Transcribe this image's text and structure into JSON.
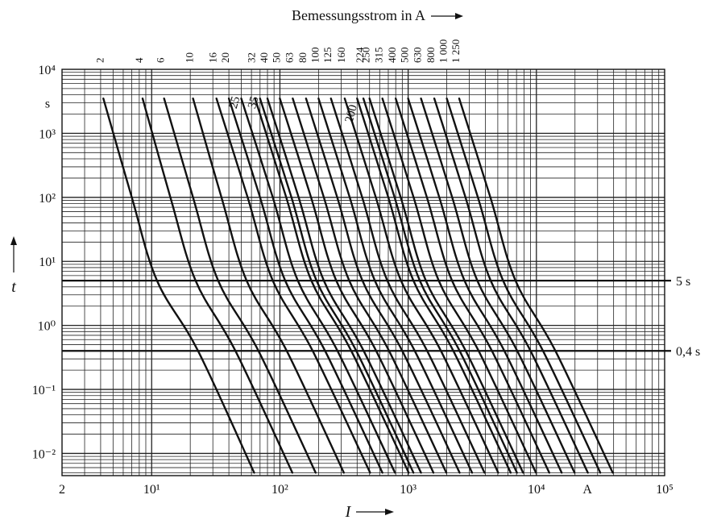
{
  "chart_data": {
    "type": "line",
    "title": "",
    "top_axis_title": "Bemessungsstrom in A",
    "xlabel": "I",
    "ylabel": "t",
    "x_unit": "A",
    "y_unit": "s",
    "x_scale": "log",
    "y_scale": "log",
    "xlim": [
      2,
      100000
    ],
    "ylim": [
      0.0045,
      10000
    ],
    "grid": true,
    "x_ticks": [
      "2",
      "10¹",
      "10²",
      "10³",
      "10⁴",
      "10⁵"
    ],
    "y_ticks": [
      "10⁴",
      "10³",
      "10²",
      "10¹",
      "10⁰",
      "10⁻¹",
      "10⁻²"
    ],
    "reference_lines": [
      {
        "label": "5 s",
        "y": 5
      },
      {
        "label": "0,4 s",
        "y": 0.4
      }
    ],
    "curve_hint_labels": [
      "25",
      "35",
      "200"
    ],
    "series": [
      {
        "name": "2",
        "rated_current": 2,
        "x": [
          4.2,
          7.0,
          11.0,
          23.0,
          63.0
        ],
        "y": [
          3500,
          100,
          5,
          0.4,
          0.005
        ]
      },
      {
        "name": "4",
        "rated_current": 4,
        "x": [
          8.5,
          14.0,
          22.0,
          45.0,
          125.0
        ],
        "y": [
          3500,
          100,
          5,
          0.4,
          0.005
        ]
      },
      {
        "name": "6",
        "rated_current": 6,
        "x": [
          12.5,
          21.0,
          33.0,
          68.0,
          190.0
        ],
        "y": [
          3500,
          100,
          5,
          0.4,
          0.005
        ]
      },
      {
        "name": "10",
        "rated_current": 10,
        "x": [
          21.0,
          35.0,
          55.0,
          113.0,
          315.0
        ],
        "y": [
          3500,
          100,
          5,
          0.4,
          0.005
        ]
      },
      {
        "name": "16",
        "rated_current": 16,
        "x": [
          32.0,
          56.0,
          88.0,
          180.0,
          505.0
        ],
        "y": [
          3500,
          100,
          5,
          0.4,
          0.005
        ]
      },
      {
        "name": "20",
        "rated_current": 20,
        "x": [
          40.0,
          70.0,
          110.0,
          225.0,
          630.0
        ],
        "y": [
          3500,
          100,
          5,
          0.4,
          0.005
        ]
      },
      {
        "name": "25",
        "rated_current": 25,
        "x": [
          50.0,
          88.0,
          138.0,
          281.0,
          790.0
        ],
        "y": [
          3500,
          100,
          5,
          0.4,
          0.005
        ]
      },
      {
        "name": "32",
        "rated_current": 32,
        "x": [
          64.0,
          112.0,
          176.0,
          360.0,
          1010.0
        ],
        "y": [
          3500,
          100,
          5,
          0.4,
          0.005
        ]
      },
      {
        "name": "35",
        "rated_current": 35,
        "x": [
          70.0,
          123.0,
          193.0,
          394.0,
          1100.0
        ],
        "y": [
          3500,
          100,
          5,
          0.4,
          0.005
        ]
      },
      {
        "name": "40",
        "rated_current": 40,
        "x": [
          80.0,
          140.0,
          220.0,
          450.0,
          1260.0
        ],
        "y": [
          3500,
          100,
          5,
          0.4,
          0.005
        ]
      },
      {
        "name": "50",
        "rated_current": 50,
        "x": [
          100.0,
          175.0,
          275.0,
          563.0,
          1575.0
        ],
        "y": [
          3500,
          100,
          5,
          0.4,
          0.005
        ]
      },
      {
        "name": "63",
        "rated_current": 63,
        "x": [
          126.0,
          220.0,
          347.0,
          709.0,
          1985.0
        ],
        "y": [
          3500,
          100,
          5,
          0.4,
          0.005
        ]
      },
      {
        "name": "80",
        "rated_current": 80,
        "x": [
          160.0,
          280.0,
          440.0,
          900.0,
          2520.0
        ],
        "y": [
          3500,
          100,
          5,
          0.4,
          0.005
        ]
      },
      {
        "name": "100",
        "rated_current": 100,
        "x": [
          200.0,
          350.0,
          550.0,
          1125.0,
          3150.0
        ],
        "y": [
          3500,
          100,
          5,
          0.4,
          0.005
        ]
      },
      {
        "name": "125",
        "rated_current": 125,
        "x": [
          250.0,
          438.0,
          688.0,
          1406.0,
          3940.0
        ],
        "y": [
          3500,
          100,
          5,
          0.4,
          0.005
        ]
      },
      {
        "name": "160",
        "rated_current": 160,
        "x": [
          320.0,
          560.0,
          880.0,
          1800.0,
          5040.0
        ],
        "y": [
          3500,
          100,
          5,
          0.4,
          0.005
        ]
      },
      {
        "name": "200",
        "rated_current": 200,
        "x": [
          400.0,
          700.0,
          1100.0,
          2250.0,
          6300.0
        ],
        "y": [
          3500,
          100,
          5,
          0.4,
          0.005
        ]
      },
      {
        "name": "224",
        "rated_current": 224,
        "x": [
          448.0,
          784.0,
          1232.0,
          2520.0,
          7060.0
        ],
        "y": [
          3500,
          100,
          5,
          0.4,
          0.005
        ]
      },
      {
        "name": "250",
        "rated_current": 250,
        "x": [
          500.0,
          875.0,
          1375.0,
          2813.0,
          7880.0
        ],
        "y": [
          3500,
          100,
          5,
          0.4,
          0.005
        ]
      },
      {
        "name": "315",
        "rated_current": 315,
        "x": [
          630.0,
          1103.0,
          1733.0,
          3544.0,
          9920.0
        ],
        "y": [
          3500,
          100,
          5,
          0.4,
          0.005
        ]
      },
      {
        "name": "400",
        "rated_current": 400,
        "x": [
          800.0,
          1400.0,
          2200.0,
          4500.0,
          12600.0
        ],
        "y": [
          3500,
          100,
          5,
          0.4,
          0.005
        ]
      },
      {
        "name": "500",
        "rated_current": 500,
        "x": [
          1000.0,
          1750.0,
          2750.0,
          5625.0,
          15750.0
        ],
        "y": [
          3500,
          100,
          5,
          0.4,
          0.005
        ]
      },
      {
        "name": "630",
        "rated_current": 630,
        "x": [
          1260.0,
          2205.0,
          3465.0,
          7088.0,
          19850.0
        ],
        "y": [
          3500,
          100,
          5,
          0.4,
          0.005
        ]
      },
      {
        "name": "800",
        "rated_current": 800,
        "x": [
          1600.0,
          2800.0,
          4400.0,
          9000.0,
          25200.0
        ],
        "y": [
          3500,
          100,
          5,
          0.4,
          0.005
        ]
      },
      {
        "name": "1 000",
        "rated_current": 1000,
        "x": [
          2000.0,
          3500.0,
          5500.0,
          11250.0,
          31500.0
        ],
        "y": [
          3500,
          100,
          5,
          0.4,
          0.005
        ]
      },
      {
        "name": "1 250",
        "rated_current": 1250,
        "x": [
          2500.0,
          4375.0,
          6875.0,
          14063.0,
          39400.0
        ],
        "y": [
          3500,
          100,
          5,
          0.4,
          0.005
        ]
      }
    ]
  }
}
